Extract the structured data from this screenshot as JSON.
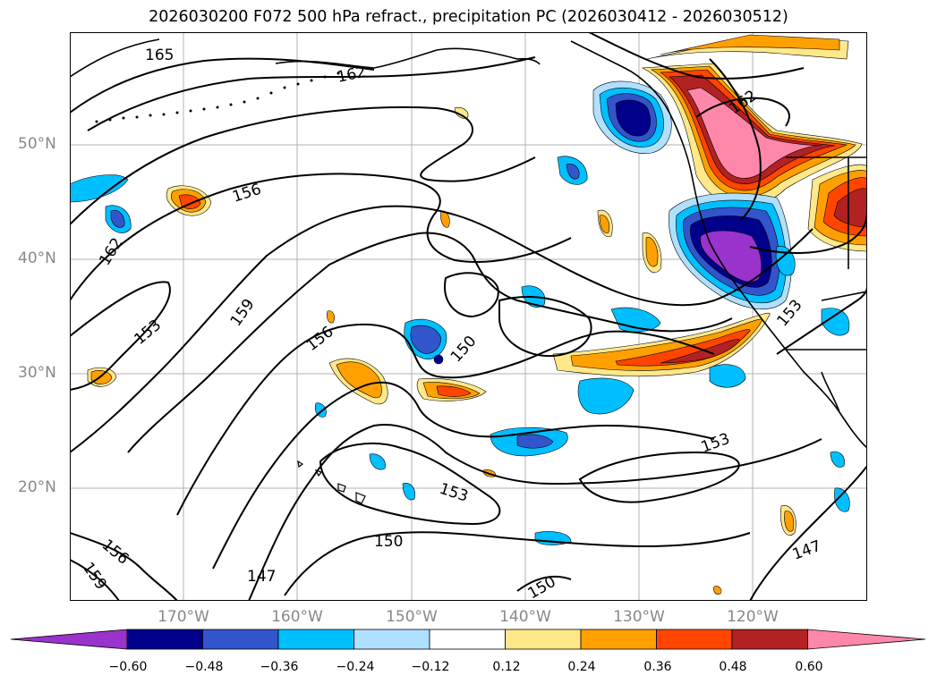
{
  "title": "2026030200 F072 500 hPa refract., precipitation PC (2026030412 - 2026030512)",
  "map": {
    "lat_labels": [
      "50°N",
      "40°N",
      "30°N",
      "20°N"
    ],
    "lon_labels": [
      "170°W",
      "160°W",
      "150°W",
      "140°W",
      "130°W",
      "120°W"
    ],
    "contour_labels": [
      "165",
      "162",
      "156",
      "162",
      "153",
      "159",
      "156",
      "150",
      "153",
      "153",
      "150",
      "147",
      "156",
      "159",
      "150",
      "162",
      "153",
      "147"
    ],
    "colors": {
      "coastline": "#000000",
      "contour": "#000000",
      "grid": "#b0b0b0"
    }
  },
  "colorbar": {
    "ticks": [
      "−0.60",
      "−0.48",
      "−0.36",
      "−0.24",
      "−0.12",
      "0.12",
      "0.24",
      "0.36",
      "0.48",
      "0.60"
    ],
    "colors": [
      "#9933cc",
      "#00008b",
      "#3355cc",
      "#00bfff",
      "#b0e0ff",
      "#ffffff",
      "#ffe88a",
      "#ffa000",
      "#ff4500",
      "#b22222",
      "#ff88aa"
    ]
  }
}
